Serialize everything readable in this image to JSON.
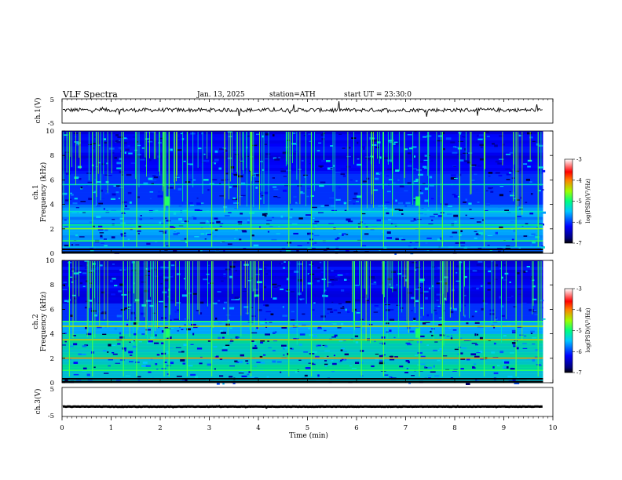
{
  "header": {
    "title": "VLF Spectra",
    "date": "Jan. 13, 2025",
    "station": "station=ATH",
    "start": "start UT =  23:30:0"
  },
  "chart_data": {
    "type": "heatmap",
    "x_axis": {
      "label": "Time (min)",
      "range": [
        0,
        10
      ],
      "ticks": [
        "0",
        "1",
        "2",
        "3",
        "4",
        "5",
        "6",
        "7",
        "8",
        "9",
        "10"
      ],
      "data_end_min": 9.8
    },
    "panels": [
      {
        "kind": "waveform",
        "ylabel": "ch.1(V)",
        "ylim": [
          -5,
          5
        ],
        "yticks": [
          "5",
          "-5"
        ],
        "baseline_v": 0.4,
        "color": "#000000"
      },
      {
        "kind": "spectrogram",
        "ylabel_top": "ch.1",
        "ylabel": "Frequency (kHz)",
        "ylim_khz": [
          0,
          10
        ],
        "yticks": [
          "0",
          "2",
          "4",
          "6",
          "8",
          "10"
        ],
        "spikes_min": [
          0.15,
          0.62,
          1.25,
          1.52,
          2.08,
          2.18,
          2.55,
          3.05,
          3.85,
          4.62,
          5.08,
          6.1,
          6.55,
          7.28,
          7.75,
          8.1,
          8.6,
          9.25,
          9.7
        ],
        "transmitter_bursts": [
          {
            "t_min": 2.15,
            "f_khz": 4.2
          },
          {
            "t_min": 7.25,
            "f_khz": 4.2
          }
        ],
        "bands": [
          {
            "f_khz": 0.5,
            "level": -5.4
          },
          {
            "f_khz": 1.0,
            "level": -4.9
          },
          {
            "f_khz": 2.0,
            "level": -4.6
          },
          {
            "f_khz": 2.3,
            "level": -5.0
          },
          {
            "f_khz": 3.4,
            "level": -5.3
          },
          {
            "f_khz": 5.6,
            "level": -5.3
          }
        ],
        "colorbar": {
          "label": "log(PSD)(V²/Hz)",
          "ticks": [
            "-3",
            "-4",
            "-5",
            "-6",
            "-7"
          ],
          "range": [
            -7,
            -3
          ]
        }
      },
      {
        "kind": "spectrogram",
        "ylabel_top": "ch.2",
        "ylabel": "Frequency (kHz)",
        "ylim_khz": [
          0,
          10
        ],
        "yticks": [
          "0",
          "2",
          "4",
          "6",
          "8",
          "10"
        ],
        "spikes_min": [
          0.15,
          0.62,
          1.25,
          1.52,
          2.08,
          2.18,
          2.55,
          3.05,
          3.85,
          4.62,
          5.08,
          6.1,
          6.55,
          7.28,
          7.75,
          8.1,
          8.6,
          9.25,
          9.7
        ],
        "transmitter_bursts": [
          {
            "t_min": 2.15,
            "f_khz": 4.0
          },
          {
            "t_min": 7.25,
            "f_khz": 4.0
          }
        ],
        "bands": [
          {
            "f_khz": 1.0,
            "level": -4.9
          },
          {
            "f_khz": 2.0,
            "level": -4.1
          },
          {
            "f_khz": 3.5,
            "level": -4.3
          },
          {
            "f_khz": 4.6,
            "level": -4.4
          },
          {
            "f_khz": 5.0,
            "level": -4.9
          }
        ],
        "colorbar": {
          "label": "log(PSD)(V²/Hz)",
          "ticks": [
            "-3",
            "-4",
            "-5",
            "-6",
            "-7"
          ],
          "range": [
            -7,
            -3
          ]
        }
      },
      {
        "kind": "waveform",
        "ylabel": "ch.3(V)",
        "ylim": [
          -5,
          5
        ],
        "yticks": [
          "5",
          "-5"
        ],
        "baseline_v": -1.6,
        "color": "#000000"
      }
    ]
  }
}
